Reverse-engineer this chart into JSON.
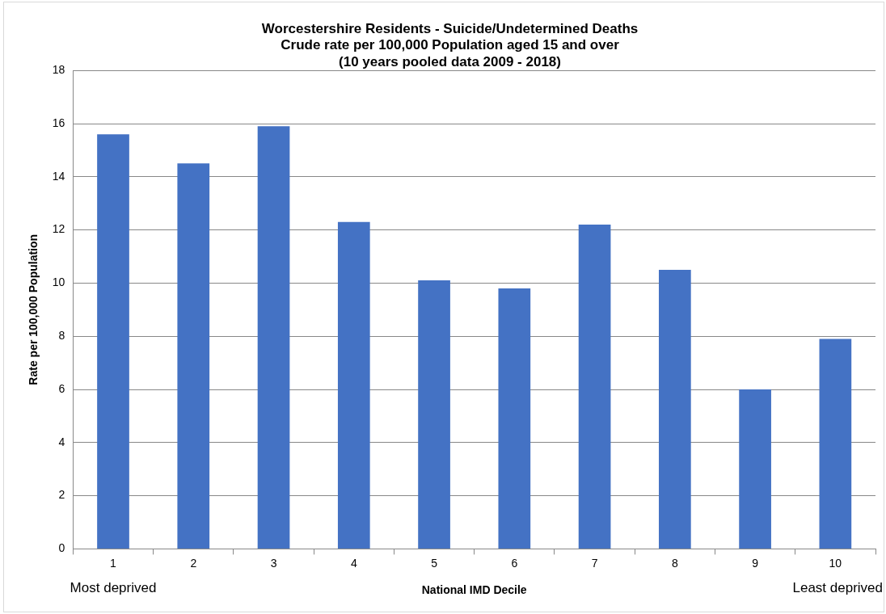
{
  "chart_data": {
    "type": "bar",
    "title": "Worcestershire Residents - Suicide/Undetermined Deaths\nCrude rate per 100,000 Population aged 15 and over\n(10 years pooled data 2009 - 2018)",
    "xlabel": "National IMD Decile",
    "ylabel": "Rate per 100,000 Population",
    "categories": [
      "1",
      "2",
      "3",
      "4",
      "5",
      "6",
      "7",
      "8",
      "9",
      "10"
    ],
    "values": [
      15.6,
      14.5,
      15.9,
      12.3,
      10.1,
      9.8,
      12.2,
      10.5,
      6.0,
      7.9
    ],
    "color": "#4472c4",
    "ylim": [
      0,
      18
    ],
    "yticks": [
      0,
      2,
      4,
      6,
      8,
      10,
      12,
      14,
      16,
      18
    ],
    "grid": "y",
    "legend": false,
    "annotations": [
      "Most deprived",
      "Least deprived"
    ]
  }
}
